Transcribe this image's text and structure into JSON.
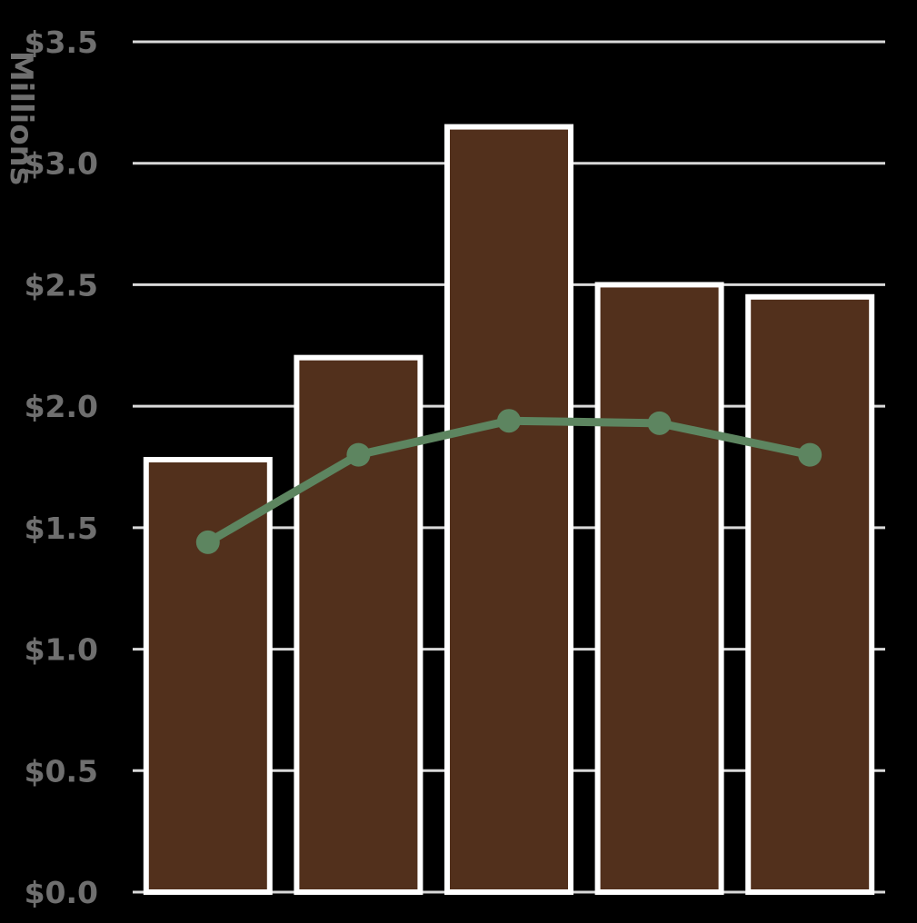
{
  "chart_data": {
    "type": "bar",
    "categories": [
      "",
      "",
      "",
      "",
      ""
    ],
    "series": [
      {
        "type": "bar",
        "values": [
          1.78,
          2.2,
          3.15,
          2.5,
          2.45
        ]
      },
      {
        "type": "line",
        "values": [
          1.44,
          1.8,
          1.94,
          1.93,
          1.8
        ]
      }
    ],
    "ylabel": "Millions",
    "ylim": [
      0,
      3.5
    ],
    "yticks": [
      0.0,
      0.5,
      1.0,
      1.5,
      2.0,
      2.5,
      3.0,
      3.5
    ],
    "ytick_labels": [
      "$0.0",
      "$0.5",
      "$1.0",
      "$1.5",
      "$2.0",
      "$2.5",
      "$3.0",
      "$3.5"
    ],
    "grid": true,
    "legend": "none",
    "colors": {
      "background": "#000000",
      "bar_fill": "#52301c",
      "bar_stroke": "#ffffff",
      "line": "#5d8560",
      "grid": "#d9d9d9",
      "tick_text": "#6f6f6f"
    }
  }
}
